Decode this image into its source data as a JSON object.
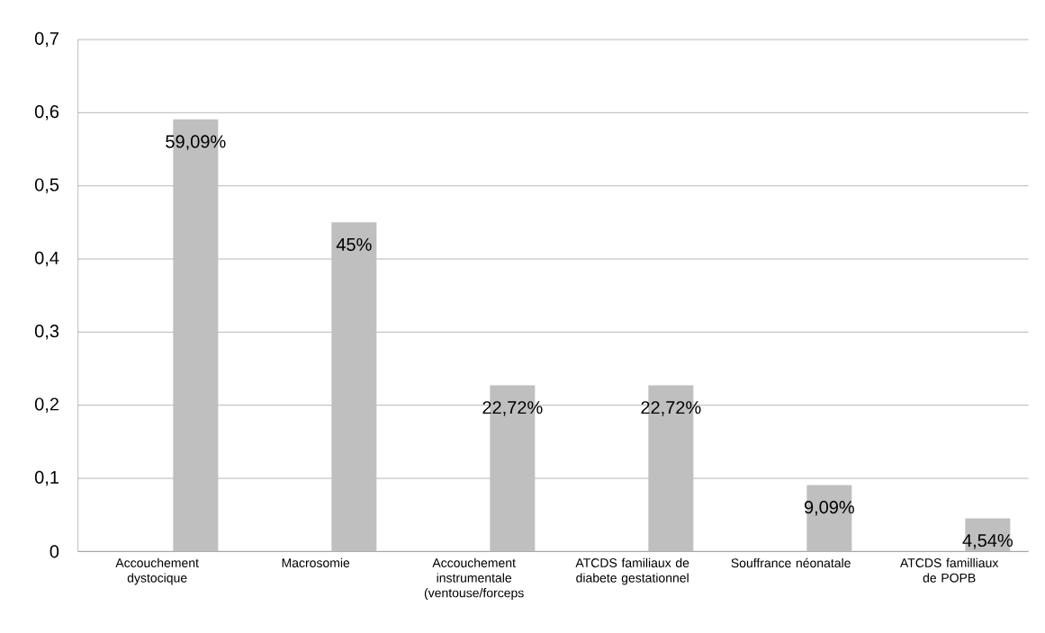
{
  "chart_data": {
    "type": "bar",
    "categories": [
      "Accouchement dystocique",
      "Macrosomie",
      "Accouchement instrumentale (ventouse/forceps",
      "ATCDS familiaux de diabete gestationnel",
      "Souffrance néonatale",
      "ATCDS familliaux de POPB"
    ],
    "values": [
      0.5909,
      0.45,
      0.2272,
      0.2272,
      0.0909,
      0.0454
    ],
    "value_labels": [
      "59,09%",
      "45%",
      "22,72%",
      "22,72%",
      "9,09%",
      "4,54%"
    ],
    "color": "#bfbfbf",
    "ylim": [
      0,
      0.7
    ],
    "yticks": [
      0,
      {
        "value": 0.1,
        "label": "0,1"
      },
      {
        "value": 0.2,
        "label": "0,2"
      },
      {
        "value": 0.3,
        "label": "0,3"
      },
      {
        "value": 0.4,
        "label": "0,4"
      },
      {
        "value": 0.5,
        "label": "0,5"
      },
      {
        "value": 0.6,
        "label": "0,6"
      },
      {
        "value": 0.7,
        "label": "0,7"
      }
    ],
    "grid": "y"
  }
}
